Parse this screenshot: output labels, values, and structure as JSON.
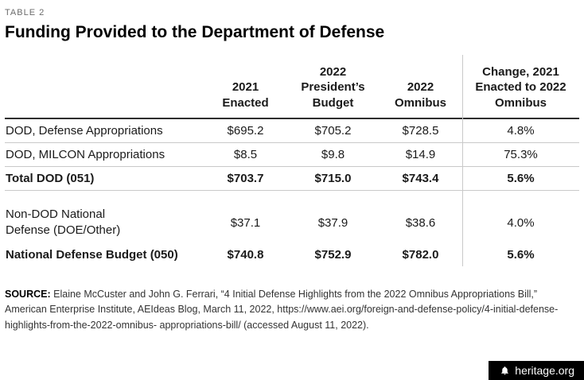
{
  "meta": {
    "table_label": "TABLE 2",
    "title": "Funding Provided to the Department of Defense"
  },
  "chart_data": {
    "type": "table",
    "title": "Funding Provided to the Department of Defense",
    "columns": [
      "2021 Enacted",
      "2022 President’s Budget",
      "2022 Omnibus",
      "Change, 2021 Enacted to 2022 Omnibus"
    ],
    "rows": [
      {
        "label": "DOD, Defense Appropriations",
        "values": [
          "$695.2",
          "$705.2",
          "$728.5",
          "4.8%"
        ],
        "bold": false,
        "gap_before": false
      },
      {
        "label": "DOD, MILCON Appropriations",
        "values": [
          "$8.5",
          "$9.8",
          "$14.9",
          "75.3%"
        ],
        "bold": false,
        "gap_before": false
      },
      {
        "label": "Total DOD (051)",
        "values": [
          "$703.7",
          "$715.0",
          "$743.4",
          "5.6%"
        ],
        "bold": true,
        "gap_before": false
      },
      {
        "label": "Non-DOD National Defense (DOE/Other)",
        "values": [
          "$37.1",
          "$37.9",
          "$38.6",
          "4.0%"
        ],
        "bold": false,
        "gap_before": true
      },
      {
        "label": "National Defense Budget (050)",
        "values": [
          "$740.8",
          "$752.9",
          "$782.0",
          "5.6%"
        ],
        "bold": true,
        "gap_before": false
      }
    ],
    "layout": {
      "divider_before_last_column": true,
      "grid": "horizontal-rules"
    }
  },
  "source": {
    "label": "SOURCE:",
    "text": "Elaine McCuster and John G. Ferrari, “4 Initial Defense Highlights from the 2022 Omnibus Appropriations Bill,” American Enterprise Institute, AEIdeas Blog, March 11, 2022, https://www.aei.org/foreign-and-defense-policy/4-initial-defense-highlights-from-the-2022-omnibus- appropriations-bill/ (accessed August 11, 2022)."
  },
  "footer": {
    "brand": "heritage.org",
    "icon": "liberty-bell-icon",
    "bar_color": "#000000"
  }
}
